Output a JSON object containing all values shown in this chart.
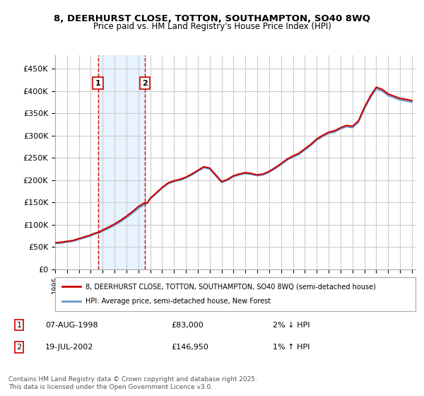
{
  "title_line1": "8, DEERHURST CLOSE, TOTTON, SOUTHAMPTON, SO40 8WQ",
  "title_line2": "Price paid vs. HM Land Registry's House Price Index (HPI)",
  "ylabel": "",
  "bg_color": "#ffffff",
  "plot_bg_color": "#ffffff",
  "grid_color": "#cccccc",
  "sale1_date_idx": 3.6,
  "sale1_price": 83000,
  "sale1_label": "1",
  "sale2_date_idx": 7.4,
  "sale2_price": 146950,
  "sale2_label": "2",
  "red_line_color": "#cc0000",
  "blue_line_color": "#6699cc",
  "shade_color": "#ddeeff",
  "vline_color": "#cc0000",
  "legend_line1": "8, DEERHURST CLOSE, TOTTON, SOUTHAMPTON, SO40 8WQ (semi-detached house)",
  "legend_line2": "HPI: Average price, semi-detached house, New Forest",
  "table_row1": [
    "1",
    "07-AUG-1998",
    "£83,000",
    "2% ↓ HPI"
  ],
  "table_row2": [
    "2",
    "19-JUL-2002",
    "£146,950",
    "1% ↑ HPI"
  ],
  "footer": "Contains HM Land Registry data © Crown copyright and database right 2025.\nThis data is licensed under the Open Government Licence v3.0.",
  "ylim": [
    0,
    480000
  ],
  "yticks": [
    0,
    50000,
    100000,
    150000,
    200000,
    250000,
    300000,
    350000,
    400000,
    450000
  ],
  "ytick_labels": [
    "£0",
    "£50K",
    "£100K",
    "£150K",
    "£200K",
    "£250K",
    "£300K",
    "£350K",
    "£400K",
    "£450K"
  ]
}
